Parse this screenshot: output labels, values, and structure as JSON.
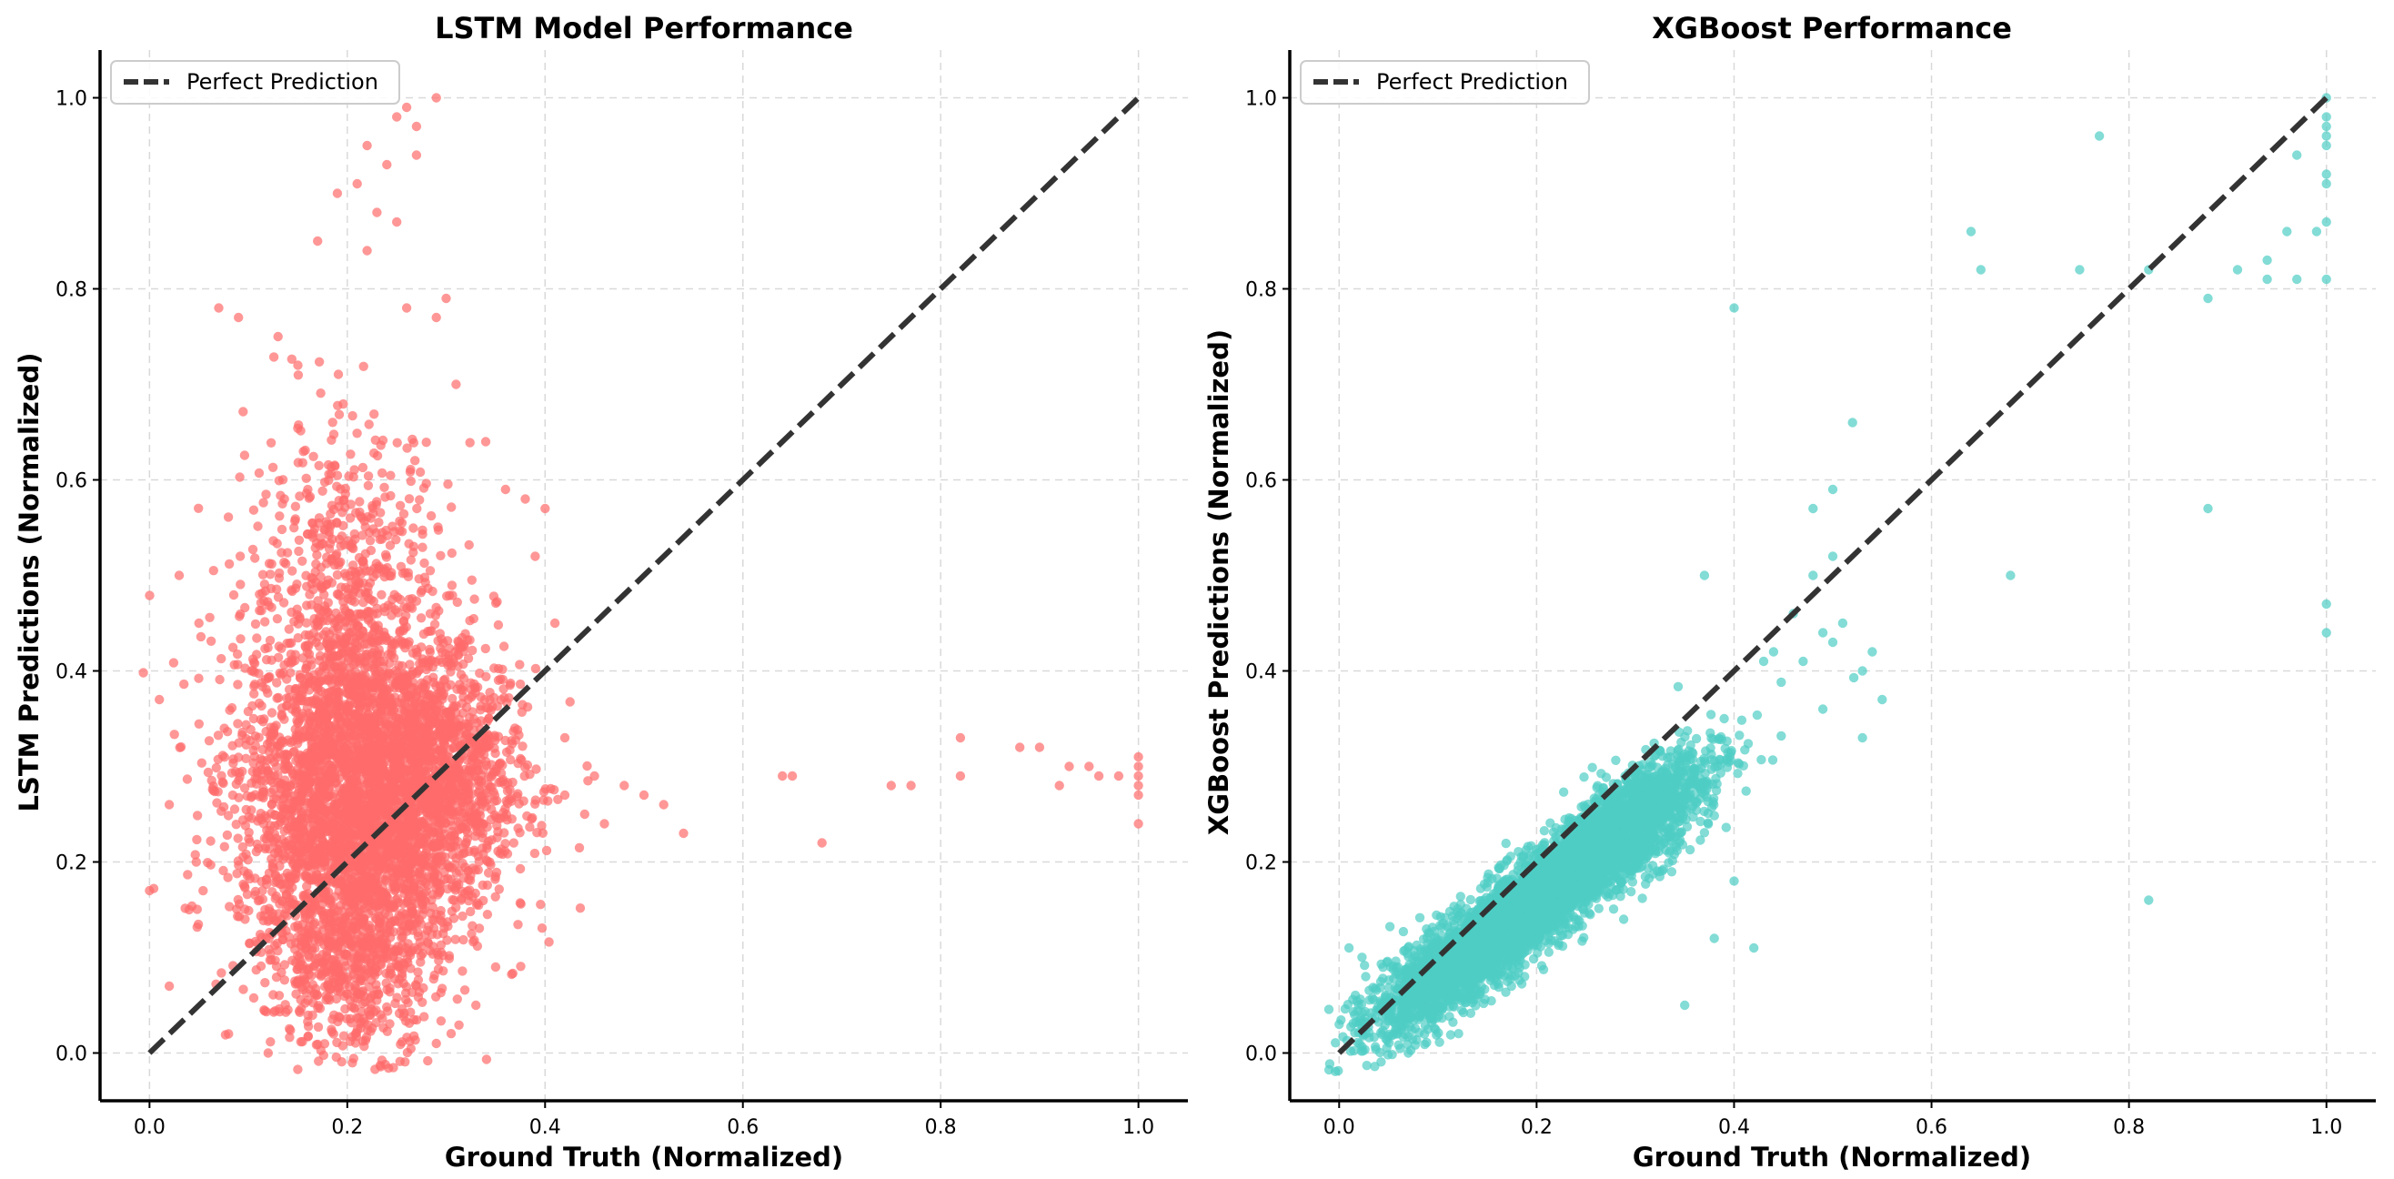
{
  "figure": {
    "background": "#ffffff"
  },
  "chart_data": [
    {
      "type": "scatter",
      "title": "LSTM Model Performance",
      "xlabel": "Ground Truth (Normalized)",
      "ylabel": "LSTM Predictions (Normalized)",
      "xlim": [
        -0.05,
        1.05
      ],
      "ylim": [
        -0.05,
        1.05
      ],
      "xticks": [
        "0.0",
        "0.2",
        "0.4",
        "0.6",
        "0.8",
        "1.0"
      ],
      "yticks": [
        "0.0",
        "0.2",
        "0.4",
        "0.6",
        "0.8",
        "1.0"
      ],
      "grid": true,
      "legend": {
        "position": "top-left",
        "entries": [
          "Perfect Prediction"
        ]
      },
      "reference_line": {
        "name": "Perfect Prediction",
        "x": [
          0,
          1
        ],
        "y": [
          0,
          1
        ],
        "color": "#333333",
        "style": "dashed"
      },
      "series": [
        {
          "name": "LSTM predictions",
          "color": "#ff6b6b",
          "points": [
            [
              0.82,
              0.33
            ],
            [
              0.88,
              0.32
            ],
            [
              0.9,
              0.32
            ],
            [
              0.93,
              0.3
            ],
            [
              0.95,
              0.3
            ],
            [
              0.96,
              0.29
            ],
            [
              0.98,
              0.29
            ],
            [
              1.0,
              0.31
            ],
            [
              1.0,
              0.3
            ],
            [
              1.0,
              0.29
            ],
            [
              1.0,
              0.28
            ],
            [
              1.0,
              0.27
            ],
            [
              1.0,
              0.24
            ],
            [
              0.64,
              0.29
            ],
            [
              0.65,
              0.29
            ],
            [
              0.68,
              0.22
            ],
            [
              0.75,
              0.28
            ],
            [
              0.77,
              0.28
            ],
            [
              0.82,
              0.29
            ],
            [
              0.92,
              0.28
            ],
            [
              0.45,
              0.29
            ],
            [
              0.48,
              0.28
            ],
            [
              0.5,
              0.27
            ],
            [
              0.52,
              0.26
            ],
            [
              0.54,
              0.23
            ],
            [
              0.46,
              0.24
            ],
            [
              0.42,
              0.27
            ],
            [
              0.44,
              0.25
            ],
            [
              0.22,
              0.95
            ],
            [
              0.25,
              0.98
            ],
            [
              0.26,
              0.99
            ],
            [
              0.29,
              1.0
            ],
            [
              0.27,
              0.94
            ],
            [
              0.24,
              0.93
            ],
            [
              0.21,
              0.91
            ],
            [
              0.19,
              0.9
            ],
            [
              0.23,
              0.88
            ],
            [
              0.17,
              0.85
            ],
            [
              0.25,
              0.87
            ],
            [
              0.27,
              0.97
            ],
            [
              0.22,
              0.84
            ],
            [
              0.07,
              0.78
            ],
            [
              0.09,
              0.77
            ],
            [
              0.13,
              0.75
            ],
            [
              0.29,
              0.77
            ],
            [
              0.3,
              0.79
            ],
            [
              0.26,
              0.78
            ],
            [
              0.38,
              0.58
            ],
            [
              0.4,
              0.57
            ],
            [
              0.36,
              0.59
            ],
            [
              0.03,
              0.5
            ],
            [
              0.01,
              0.37
            ],
            [
              0.0,
              0.17
            ],
            [
              0.02,
              0.07
            ],
            [
              0.08,
              0.02
            ],
            [
              0.12,
              0.0
            ],
            [
              0.29,
              0.01
            ],
            [
              0.05,
              0.45
            ],
            [
              0.15,
              0.72
            ],
            [
              0.31,
              0.7
            ],
            [
              0.34,
              0.64
            ],
            [
              0.39,
              0.52
            ],
            [
              0.41,
              0.45
            ],
            [
              0.42,
              0.33
            ],
            [
              0.33,
              0.05
            ],
            [
              0.35,
              0.09
            ],
            [
              0.04,
              0.15
            ],
            [
              0.02,
              0.26
            ]
          ],
          "clusters": [
            {
              "center": [
                0.22,
                0.3
              ],
              "spread": [
                0.065,
                0.085
              ],
              "count": 2400
            },
            {
              "center": [
                0.2,
                0.22
              ],
              "spread": [
                0.055,
                0.075
              ],
              "count": 1100
            },
            {
              "center": [
                0.21,
                0.1
              ],
              "spread": [
                0.045,
                0.05
              ],
              "count": 600
            },
            {
              "center": [
                0.2,
                0.5
              ],
              "spread": [
                0.05,
                0.08
              ],
              "count": 500
            },
            {
              "center": [
                0.3,
                0.28
              ],
              "spread": [
                0.04,
                0.06
              ],
              "count": 600
            }
          ],
          "count_estimate": 5000
        }
      ]
    },
    {
      "type": "scatter",
      "title": "XGBoost Performance",
      "xlabel": "Ground Truth (Normalized)",
      "ylabel": "XGBoost Predictions (Normalized)",
      "xlim": [
        -0.05,
        1.05
      ],
      "ylim": [
        -0.05,
        1.05
      ],
      "xticks": [
        "0.0",
        "0.2",
        "0.4",
        "0.6",
        "0.8",
        "1.0"
      ],
      "yticks": [
        "0.0",
        "0.2",
        "0.4",
        "0.6",
        "0.8",
        "1.0"
      ],
      "grid": true,
      "legend": {
        "position": "top-left",
        "entries": [
          "Perfect Prediction"
        ]
      },
      "reference_line": {
        "name": "Perfect Prediction",
        "x": [
          0,
          1
        ],
        "y": [
          0,
          1
        ],
        "color": "#333333",
        "style": "dashed"
      },
      "series": [
        {
          "name": "XGBoost predictions",
          "color": "#4ecdc4",
          "points": [
            [
              0.4,
              0.78
            ],
            [
              0.64,
              0.86
            ],
            [
              0.65,
              0.82
            ],
            [
              0.75,
              0.82
            ],
            [
              0.77,
              0.96
            ],
            [
              0.82,
              0.82
            ],
            [
              0.88,
              0.79
            ],
            [
              0.91,
              0.82
            ],
            [
              0.94,
              0.81
            ],
            [
              0.94,
              0.83
            ],
            [
              0.96,
              0.86
            ],
            [
              0.97,
              0.81
            ],
            [
              0.97,
              0.94
            ],
            [
              0.99,
              0.86
            ],
            [
              1.0,
              1.0
            ],
            [
              1.0,
              0.98
            ],
            [
              1.0,
              0.97
            ],
            [
              1.0,
              0.96
            ],
            [
              1.0,
              0.95
            ],
            [
              1.0,
              0.92
            ],
            [
              1.0,
              0.91
            ],
            [
              1.0,
              0.87
            ],
            [
              1.0,
              0.81
            ],
            [
              1.0,
              0.47
            ],
            [
              1.0,
              0.44
            ],
            [
              0.88,
              0.57
            ],
            [
              0.82,
              0.16
            ],
            [
              0.68,
              0.5
            ],
            [
              0.52,
              0.66
            ],
            [
              0.5,
              0.59
            ],
            [
              0.48,
              0.57
            ],
            [
              0.5,
              0.52
            ],
            [
              0.48,
              0.5
            ],
            [
              0.46,
              0.46
            ],
            [
              0.44,
              0.42
            ],
            [
              0.43,
              0.41
            ],
            [
              0.47,
              0.41
            ],
            [
              0.49,
              0.44
            ],
            [
              0.51,
              0.45
            ],
            [
              0.5,
              0.43
            ],
            [
              0.53,
              0.4
            ],
            [
              0.54,
              0.42
            ],
            [
              0.55,
              0.37
            ],
            [
              0.53,
              0.33
            ],
            [
              0.49,
              0.36
            ],
            [
              0.37,
              0.5
            ],
            [
              0.42,
              0.11
            ],
            [
              0.35,
              0.05
            ],
            [
              0.38,
              0.12
            ],
            [
              0.4,
              0.18
            ],
            [
              0.39,
              0.35
            ],
            [
              0.01,
              0.11
            ],
            [
              0.0,
              0.03
            ],
            [
              0.07,
              0.0
            ]
          ],
          "clusters": [
            {
              "center": [
                0.2,
                0.16
              ],
              "spread": [
                0.075,
                0.065
              ],
              "correlation": 0.92,
              "count": 3600
            },
            {
              "center": [
                0.3,
                0.24
              ],
              "spread": [
                0.035,
                0.035
              ],
              "correlation": 0.6,
              "count": 700
            },
            {
              "center": [
                0.11,
                0.09
              ],
              "spread": [
                0.04,
                0.03
              ],
              "correlation": 0.7,
              "count": 500
            }
          ],
          "count_estimate": 4800
        }
      ]
    }
  ]
}
